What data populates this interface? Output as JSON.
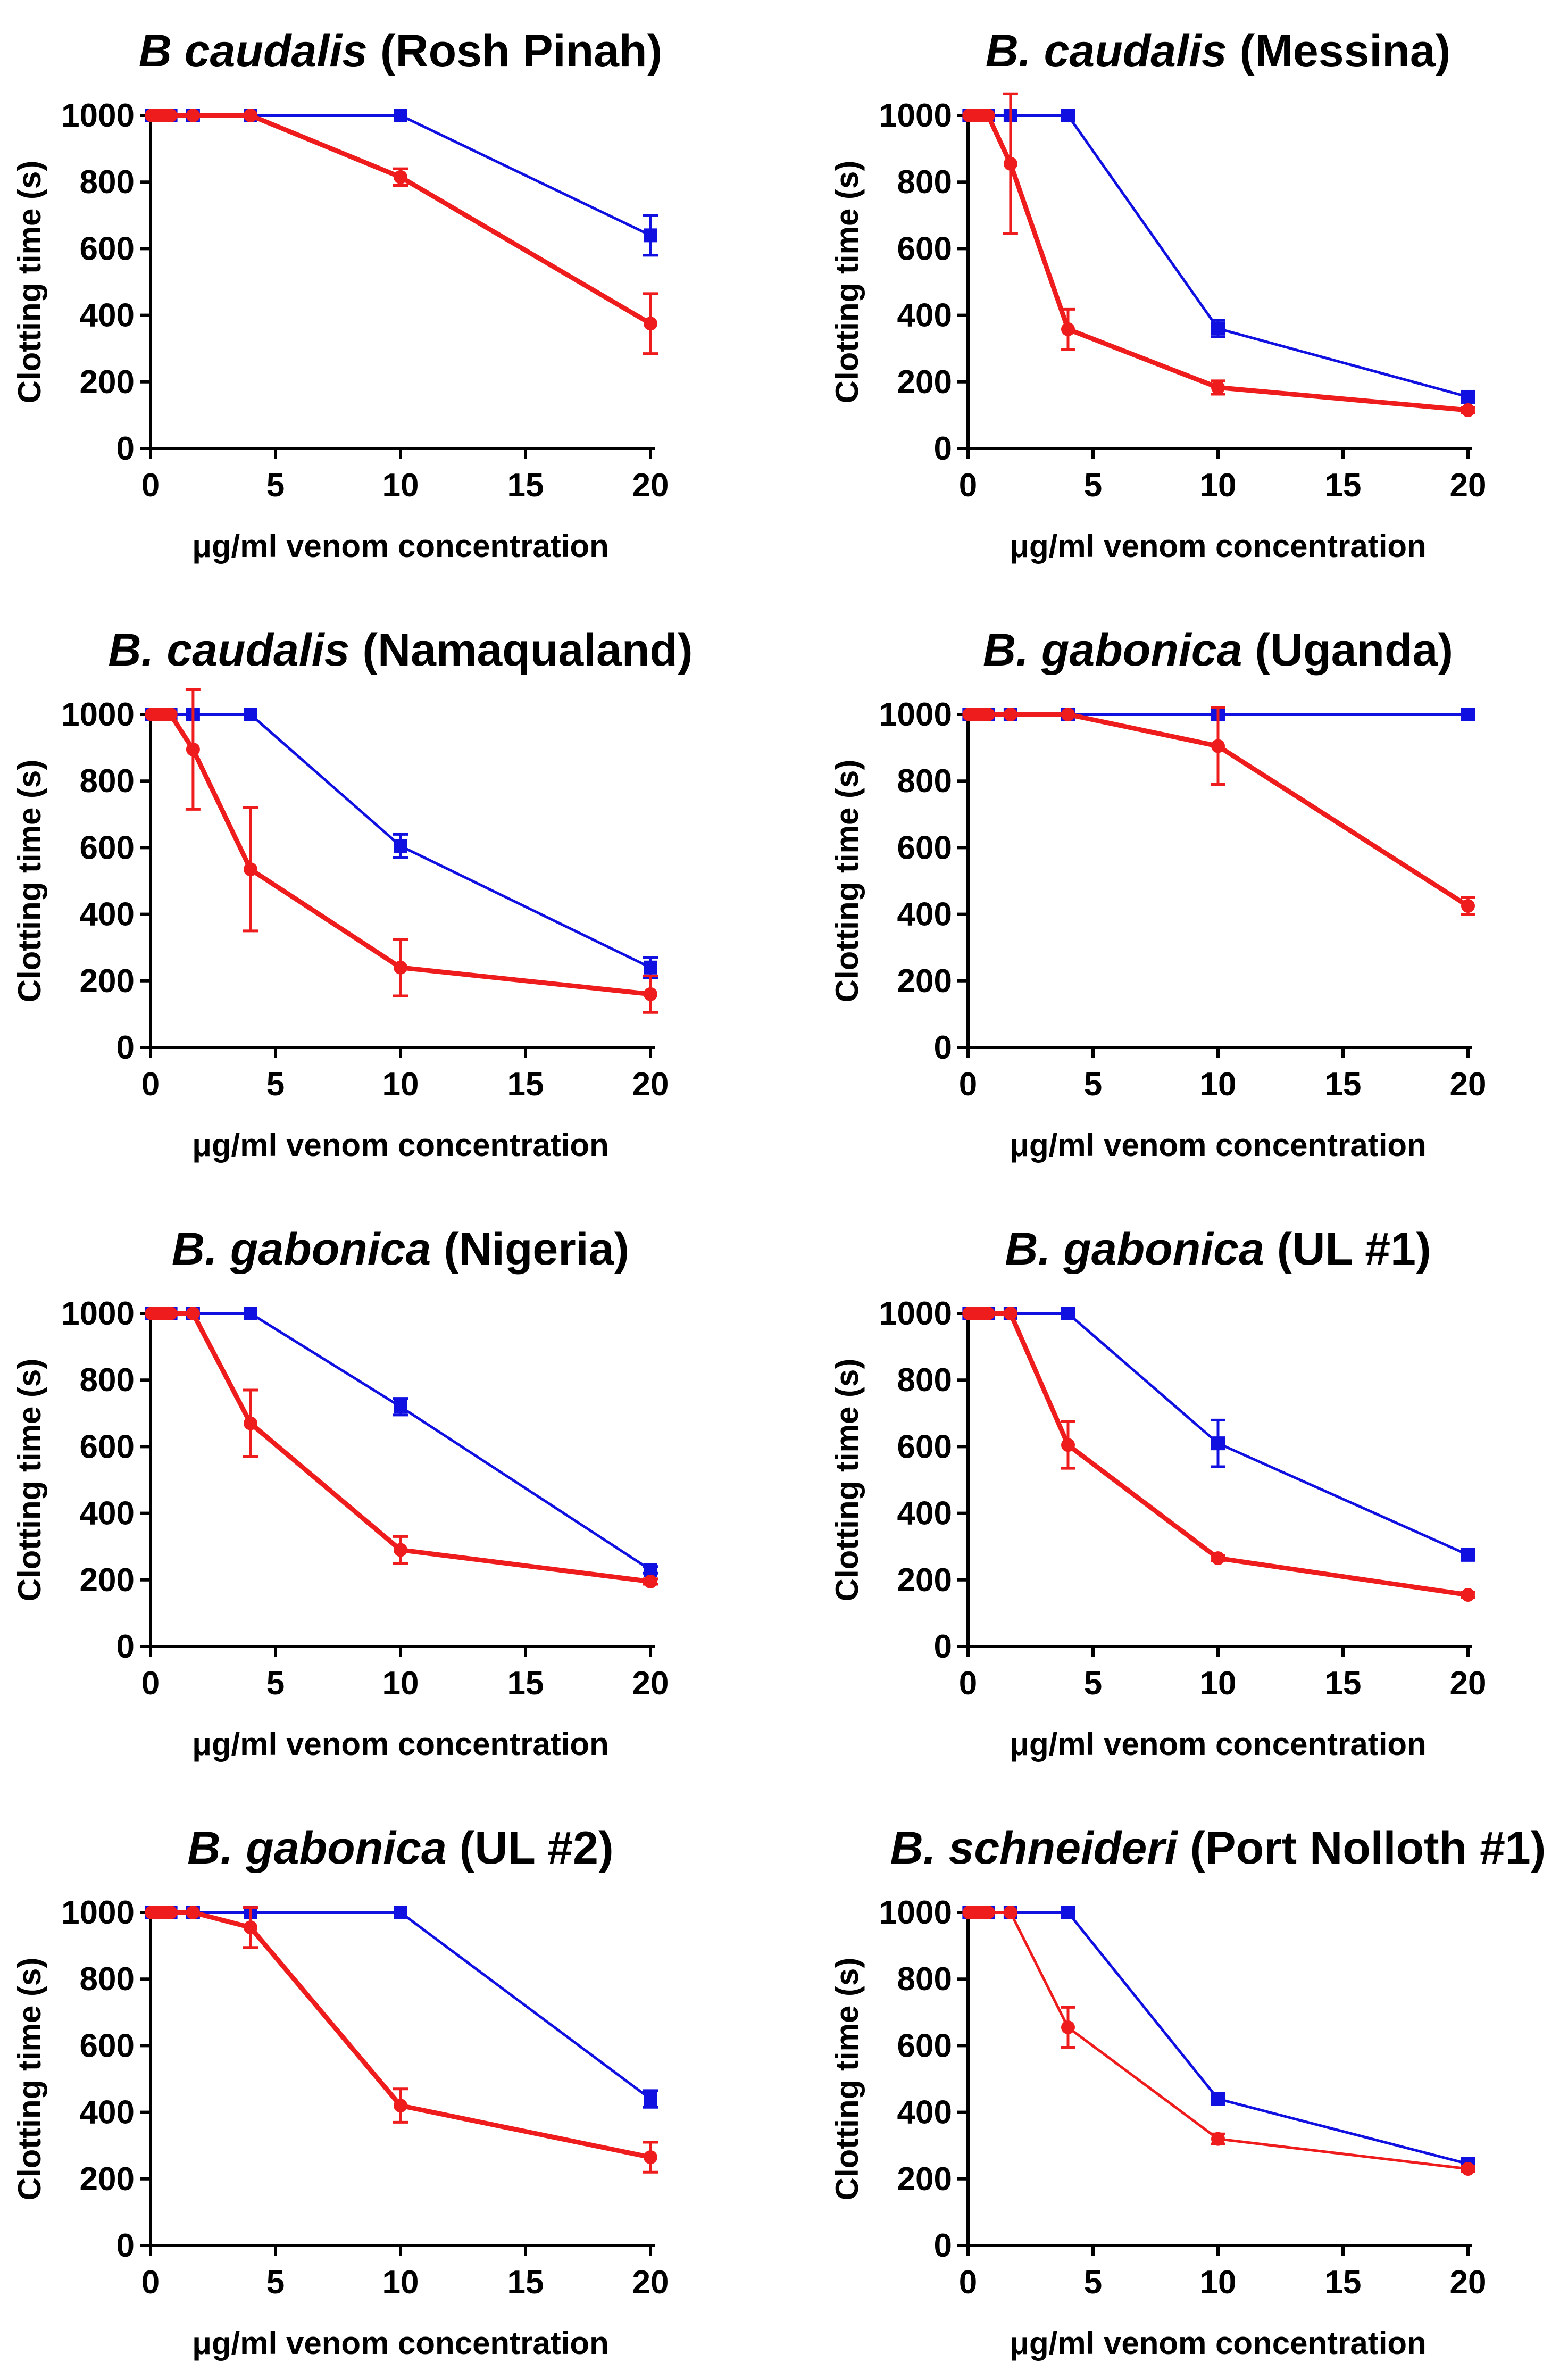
{
  "figure": {
    "shared": {
      "xlabel": "μg/ml venom concentration",
      "ylabel": "Clotting time (s)",
      "xticks": [
        0,
        5,
        10,
        15,
        20
      ],
      "yticks": [
        0,
        200,
        400,
        600,
        800,
        1000
      ],
      "xlim": [
        0,
        20
      ],
      "ylim": [
        0,
        1000
      ],
      "colors": {
        "blue": "#1010e0",
        "red": "#ee1c1c"
      }
    }
  },
  "chart_data": [
    {
      "type": "line",
      "title_species": "B caudalis",
      "title_location": " (Rosh Pinah)",
      "xlabel": "μg/ml venom concentration",
      "ylabel": "Clotting time (s)",
      "xlim": [
        0,
        20
      ],
      "ylim": [
        0,
        1000
      ],
      "series": [
        {
          "name": "blue",
          "color": "#1010e0",
          "x": [
            0.05,
            0.2,
            0.4,
            0.6,
            0.8,
            1.7,
            4,
            10,
            20
          ],
          "y": [
            1000,
            1000,
            1000,
            1000,
            1000,
            1000,
            1000,
            1000,
            640
          ],
          "err": [
            0,
            0,
            0,
            0,
            0,
            0,
            0,
            0,
            60
          ]
        },
        {
          "name": "red",
          "color": "#ee1c1c",
          "x": [
            0.05,
            0.2,
            0.4,
            0.6,
            0.8,
            1.7,
            4,
            10,
            20
          ],
          "y": [
            1000,
            1000,
            1000,
            1000,
            1000,
            1000,
            1000,
            815,
            375
          ],
          "err": [
            0,
            0,
            0,
            0,
            0,
            0,
            0,
            25,
            90
          ]
        }
      ]
    },
    {
      "type": "line",
      "title_species": "B. caudalis",
      "title_location": " (Messina)",
      "xlabel": "μg/ml venom concentration",
      "ylabel": "Clotting time (s)",
      "xlim": [
        0,
        20
      ],
      "ylim": [
        0,
        1000
      ],
      "series": [
        {
          "name": "blue",
          "color": "#1010e0",
          "x": [
            0.05,
            0.2,
            0.4,
            0.6,
            0.8,
            1.7,
            4,
            10,
            20
          ],
          "y": [
            1000,
            1000,
            1000,
            1000,
            1000,
            1000,
            1000,
            360,
            155
          ],
          "err": [
            0,
            0,
            0,
            0,
            0,
            0,
            0,
            25,
            10
          ]
        },
        {
          "name": "red",
          "color": "#ee1c1c",
          "x": [
            0.05,
            0.2,
            0.4,
            0.6,
            0.8,
            1.7,
            4,
            10,
            20
          ],
          "y": [
            1000,
            1000,
            1000,
            1000,
            1000,
            855,
            358,
            183,
            115
          ],
          "err": [
            0,
            0,
            0,
            0,
            0,
            210,
            60,
            20,
            8
          ]
        }
      ]
    },
    {
      "type": "line",
      "title_species": "B. caudalis",
      "title_location": " (Namaqualand)",
      "xlabel": "μg/ml venom concentration",
      "ylabel": "Clotting time (s)",
      "xlim": [
        0,
        20
      ],
      "ylim": [
        0,
        1000
      ],
      "series": [
        {
          "name": "blue",
          "color": "#1010e0",
          "x": [
            0.05,
            0.2,
            0.4,
            0.6,
            0.8,
            1.7,
            4,
            10,
            20
          ],
          "y": [
            1000,
            1000,
            1000,
            1000,
            1000,
            1000,
            1000,
            605,
            240
          ],
          "err": [
            0,
            0,
            0,
            0,
            0,
            0,
            0,
            35,
            30
          ]
        },
        {
          "name": "red",
          "color": "#ee1c1c",
          "x": [
            0.05,
            0.2,
            0.4,
            0.6,
            0.8,
            1.7,
            4,
            10,
            20
          ],
          "y": [
            1000,
            1000,
            1000,
            1000,
            1000,
            895,
            535,
            240,
            160
          ],
          "err": [
            0,
            0,
            0,
            0,
            0,
            180,
            185,
            85,
            55
          ]
        }
      ]
    },
    {
      "type": "line",
      "title_species": "B. gabonica",
      "title_location": " (Uganda)",
      "xlabel": "μg/ml venom concentration",
      "ylabel": "Clotting time (s)",
      "xlim": [
        0,
        20
      ],
      "ylim": [
        0,
        1000
      ],
      "series": [
        {
          "name": "blue",
          "color": "#1010e0",
          "x": [
            0.05,
            0.2,
            0.4,
            0.6,
            0.8,
            1.7,
            4,
            10,
            20
          ],
          "y": [
            1000,
            1000,
            1000,
            1000,
            1000,
            1000,
            1000,
            1000,
            1000
          ],
          "err": [
            0,
            0,
            0,
            0,
            0,
            0,
            0,
            0,
            0
          ]
        },
        {
          "name": "red",
          "color": "#ee1c1c",
          "x": [
            0.05,
            0.2,
            0.4,
            0.6,
            0.8,
            1.7,
            4,
            10,
            20
          ],
          "y": [
            1000,
            1000,
            1000,
            1000,
            1000,
            1000,
            1000,
            905,
            425
          ],
          "err": [
            0,
            0,
            0,
            0,
            0,
            0,
            0,
            115,
            25
          ]
        }
      ]
    },
    {
      "type": "line",
      "title_species": "B. gabonica",
      "title_location": " (Nigeria)",
      "xlabel": "μg/ml venom concentration",
      "ylabel": "Clotting time (s)",
      "xlim": [
        0,
        20
      ],
      "ylim": [
        0,
        1000
      ],
      "series": [
        {
          "name": "blue",
          "color": "#1010e0",
          "x": [
            0.05,
            0.2,
            0.4,
            0.6,
            0.8,
            1.7,
            4,
            10,
            20
          ],
          "y": [
            1000,
            1000,
            1000,
            1000,
            1000,
            1000,
            1000,
            720,
            230
          ],
          "err": [
            0,
            0,
            0,
            0,
            0,
            0,
            0,
            25,
            10
          ]
        },
        {
          "name": "red",
          "color": "#ee1c1c",
          "x": [
            0.05,
            0.2,
            0.4,
            0.6,
            0.8,
            1.7,
            4,
            10,
            20
          ],
          "y": [
            1000,
            1000,
            1000,
            1000,
            1000,
            1000,
            670,
            290,
            195
          ],
          "err": [
            0,
            0,
            0,
            0,
            0,
            0,
            100,
            40,
            8
          ]
        }
      ]
    },
    {
      "type": "line",
      "title_species": "B. gabonica",
      "title_location": " (UL #1)",
      "xlabel": "μg/ml venom concentration",
      "ylabel": "Clotting time (s)",
      "xlim": [
        0,
        20
      ],
      "ylim": [
        0,
        1000
      ],
      "series": [
        {
          "name": "blue",
          "color": "#1010e0",
          "x": [
            0.05,
            0.2,
            0.4,
            0.6,
            0.8,
            1.7,
            4,
            10,
            20
          ],
          "y": [
            1000,
            1000,
            1000,
            1000,
            1000,
            1000,
            1000,
            610,
            275
          ],
          "err": [
            0,
            0,
            0,
            0,
            0,
            0,
            0,
            70,
            10
          ]
        },
        {
          "name": "red",
          "color": "#ee1c1c",
          "x": [
            0.05,
            0.2,
            0.4,
            0.6,
            0.8,
            1.7,
            4,
            10,
            20
          ],
          "y": [
            1000,
            1000,
            1000,
            1000,
            1000,
            1000,
            605,
            265,
            155
          ],
          "err": [
            0,
            0,
            0,
            0,
            0,
            0,
            70,
            8,
            8
          ]
        }
      ]
    },
    {
      "type": "line",
      "title_species": "B. gabonica",
      "title_location": " (UL #2)",
      "xlabel": "μg/ml venom concentration",
      "ylabel": "Clotting time (s)",
      "xlim": [
        0,
        20
      ],
      "ylim": [
        0,
        1000
      ],
      "series": [
        {
          "name": "blue",
          "color": "#1010e0",
          "x": [
            0.05,
            0.2,
            0.4,
            0.6,
            0.8,
            1.7,
            4,
            10,
            20
          ],
          "y": [
            1000,
            1000,
            1000,
            1000,
            1000,
            1000,
            1000,
            1000,
            440
          ],
          "err": [
            0,
            0,
            0,
            0,
            0,
            0,
            0,
            0,
            25
          ]
        },
        {
          "name": "red",
          "color": "#ee1c1c",
          "x": [
            0.05,
            0.2,
            0.4,
            0.6,
            0.8,
            1.7,
            4,
            10,
            20
          ],
          "y": [
            1000,
            1000,
            1000,
            1000,
            1000,
            1000,
            955,
            420,
            265
          ],
          "err": [
            0,
            0,
            0,
            0,
            0,
            0,
            60,
            50,
            45
          ]
        }
      ]
    },
    {
      "type": "line",
      "title_species": "B. schneideri",
      "title_location": " (Port Nolloth #1)",
      "xlabel": "μg/ml venom concentration",
      "ylabel": "Clotting time (s)",
      "xlim": [
        0,
        20
      ],
      "ylim": [
        0,
        1000
      ],
      "series": [
        {
          "name": "blue",
          "color": "#1010e0",
          "x": [
            0.05,
            0.2,
            0.4,
            0.6,
            0.8,
            1.7,
            4,
            10,
            20
          ],
          "y": [
            1000,
            1000,
            1000,
            1000,
            1000,
            1000,
            1000,
            440,
            245
          ],
          "err": [
            0,
            0,
            0,
            0,
            0,
            0,
            0,
            8,
            8
          ]
        },
        {
          "name": "red",
          "color": "#ee1c1c",
          "x": [
            0.05,
            0.2,
            0.4,
            0.6,
            0.8,
            1.7,
            4,
            10,
            20
          ],
          "y": [
            1000,
            1000,
            1000,
            1000,
            1000,
            1000,
            655,
            320,
            230
          ],
          "err": [
            0,
            0,
            0,
            0,
            0,
            0,
            60,
            15,
            8
          ]
        }
      ]
    }
  ]
}
